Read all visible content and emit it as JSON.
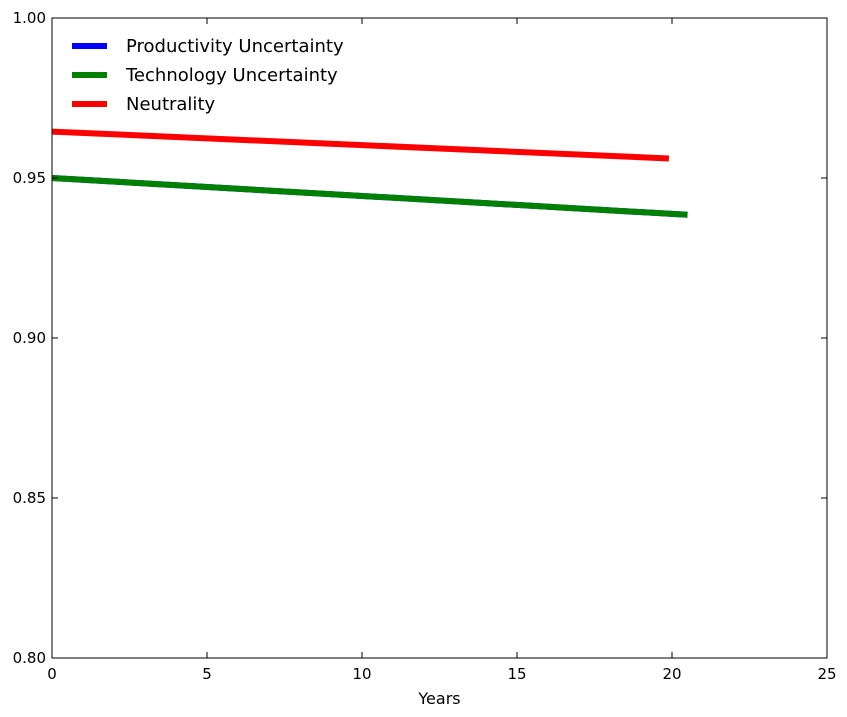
{
  "chart_data": {
    "type": "line",
    "title": "",
    "xlabel": "Years",
    "ylabel": "",
    "xlim": [
      0,
      25
    ],
    "ylim": [
      0.8,
      1.0
    ],
    "xticks": [
      "0",
      "5",
      "10",
      "15",
      "20",
      "25"
    ],
    "yticks": [
      "0.80",
      "0.85",
      "0.90",
      "0.95",
      "1.00"
    ],
    "grid": false,
    "legend_position": "top-left",
    "series": [
      {
        "name": "Productivity Uncertainty",
        "color": "#0000ff",
        "x": [
          0,
          20.5
        ],
        "y": [
          0.95,
          0.9385
        ]
      },
      {
        "name": "Technology Uncertainty",
        "color": "#008000",
        "x": [
          0,
          20.5
        ],
        "y": [
          0.95,
          0.9385
        ]
      },
      {
        "name": "Neutrality",
        "color": "#ff0000",
        "x": [
          0,
          19.9
        ],
        "y": [
          0.9645,
          0.9561
        ]
      }
    ]
  }
}
